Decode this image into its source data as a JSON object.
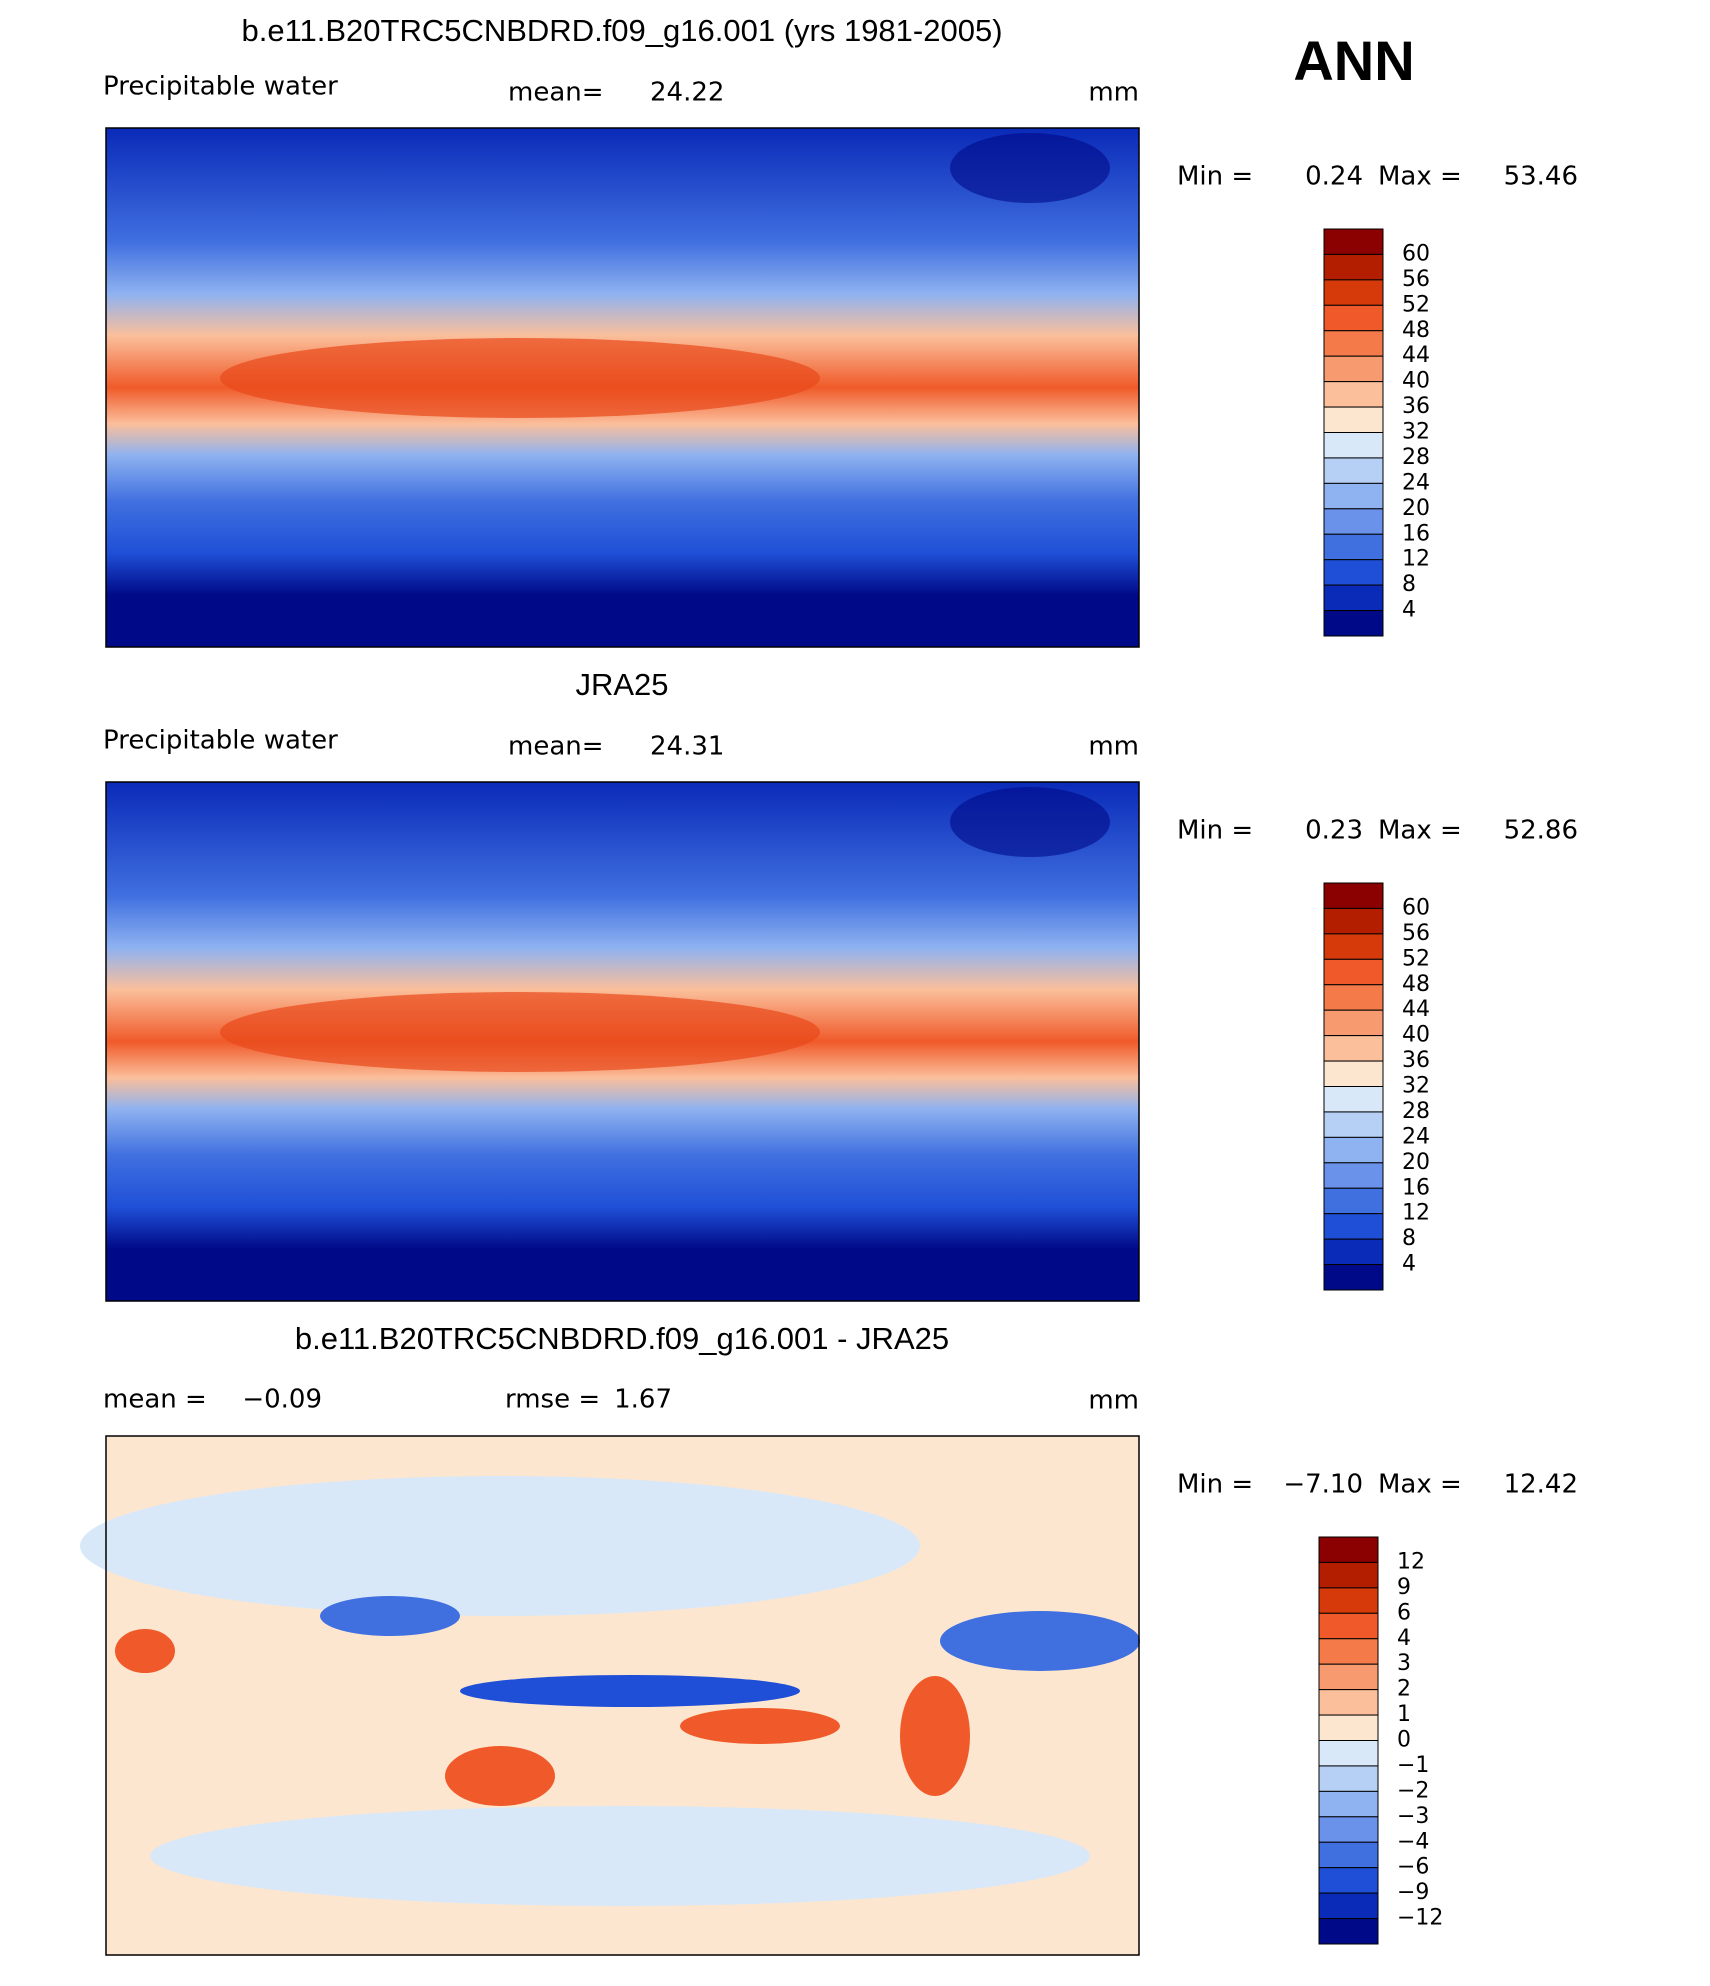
{
  "header": {
    "title": "ANN"
  },
  "colorbar_colors": [
    "#8b0000",
    "#b31e00",
    "#d63a0a",
    "#f05a2a",
    "#f57a4a",
    "#f89a70",
    "#fbbf9b",
    "#fde6d0",
    "#d8e8f8",
    "#b5cff5",
    "#8fb2f0",
    "#6a92ea",
    "#4070e0",
    "#1f4fd6",
    "#0a2ab8",
    "#000a88"
  ],
  "panels": [
    {
      "title": "b.e11.B20TRC5CNBDRD.f09_g16.001 (yrs 1981-2005)",
      "label": "Precipitable water",
      "stats": [
        {
          "name": "mean=",
          "value": "24.22"
        }
      ],
      "units": "mm",
      "min_label": "Min =",
      "min": "0.24",
      "max_label": "Max =",
      "max": "53.46",
      "colorbar_labels": [
        "60",
        "56",
        "52",
        "48",
        "44",
        "40",
        "36",
        "32",
        "28",
        "24",
        "20",
        "16",
        "12",
        "8",
        "4"
      ]
    },
    {
      "title": "JRA25",
      "label": "Precipitable water",
      "stats": [
        {
          "name": "mean=",
          "value": "24.31"
        }
      ],
      "units": "mm",
      "min_label": "Min =",
      "min": "0.23",
      "max_label": "Max =",
      "max": "52.86",
      "colorbar_labels": [
        "60",
        "56",
        "52",
        "48",
        "44",
        "40",
        "36",
        "32",
        "28",
        "24",
        "20",
        "16",
        "12",
        "8",
        "4"
      ]
    },
    {
      "title": "b.e11.B20TRC5CNBDRD.f09_g16.001 - JRA25",
      "stats": [
        {
          "name": "mean =",
          "value": "−0.09"
        },
        {
          "name": "rmse =",
          "value": "1.67"
        }
      ],
      "units": "mm",
      "min_label": "Min =",
      "min": "−7.10",
      "max_label": "Max =",
      "max": "12.42",
      "colorbar_labels": [
        "12",
        "9",
        "6",
        "4",
        "3",
        "2",
        "1",
        "0",
        "−1",
        "−2",
        "−3",
        "−4",
        "−6",
        "−9",
        "−12"
      ]
    }
  ]
}
